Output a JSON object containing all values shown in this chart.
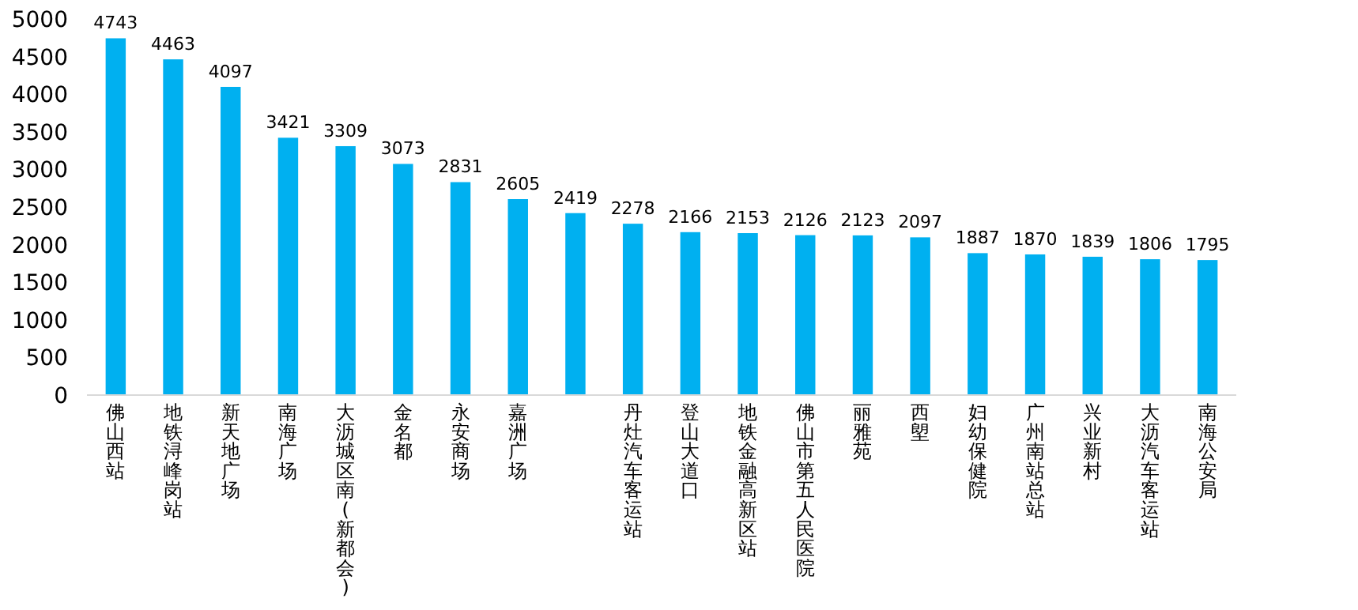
{
  "chart_data": {
    "type": "bar",
    "categories": [
      "佛山西站",
      "地铁浔峰岗站",
      "新天地广场",
      "南海广场",
      "大沥城区南(新都会)",
      "金名都",
      "永安商场",
      "嘉洲广场",
      null,
      "丹灶汽车客运站",
      "登山大道口",
      "地铁金融高新区站",
      "佛山市第五人民医院",
      "丽雅苑",
      "西塱",
      "妇幼保健院",
      "广州南站总站",
      "兴业新村",
      "大沥汽车客运站",
      "南海公安局"
    ],
    "values": [
      4743,
      4463,
      4097,
      3421,
      3309,
      3073,
      2831,
      2605,
      2419,
      2278,
      2166,
      2153,
      2126,
      2123,
      2097,
      1887,
      1870,
      1839,
      1806,
      1795
    ],
    "color": "#00b0f0",
    "ylim": [
      0,
      5000
    ],
    "yticks": [
      0,
      500,
      1000,
      1500,
      2000,
      2500,
      3000,
      3500,
      4000,
      4500,
      5000
    ],
    "data_labels": true,
    "grid": false
  }
}
